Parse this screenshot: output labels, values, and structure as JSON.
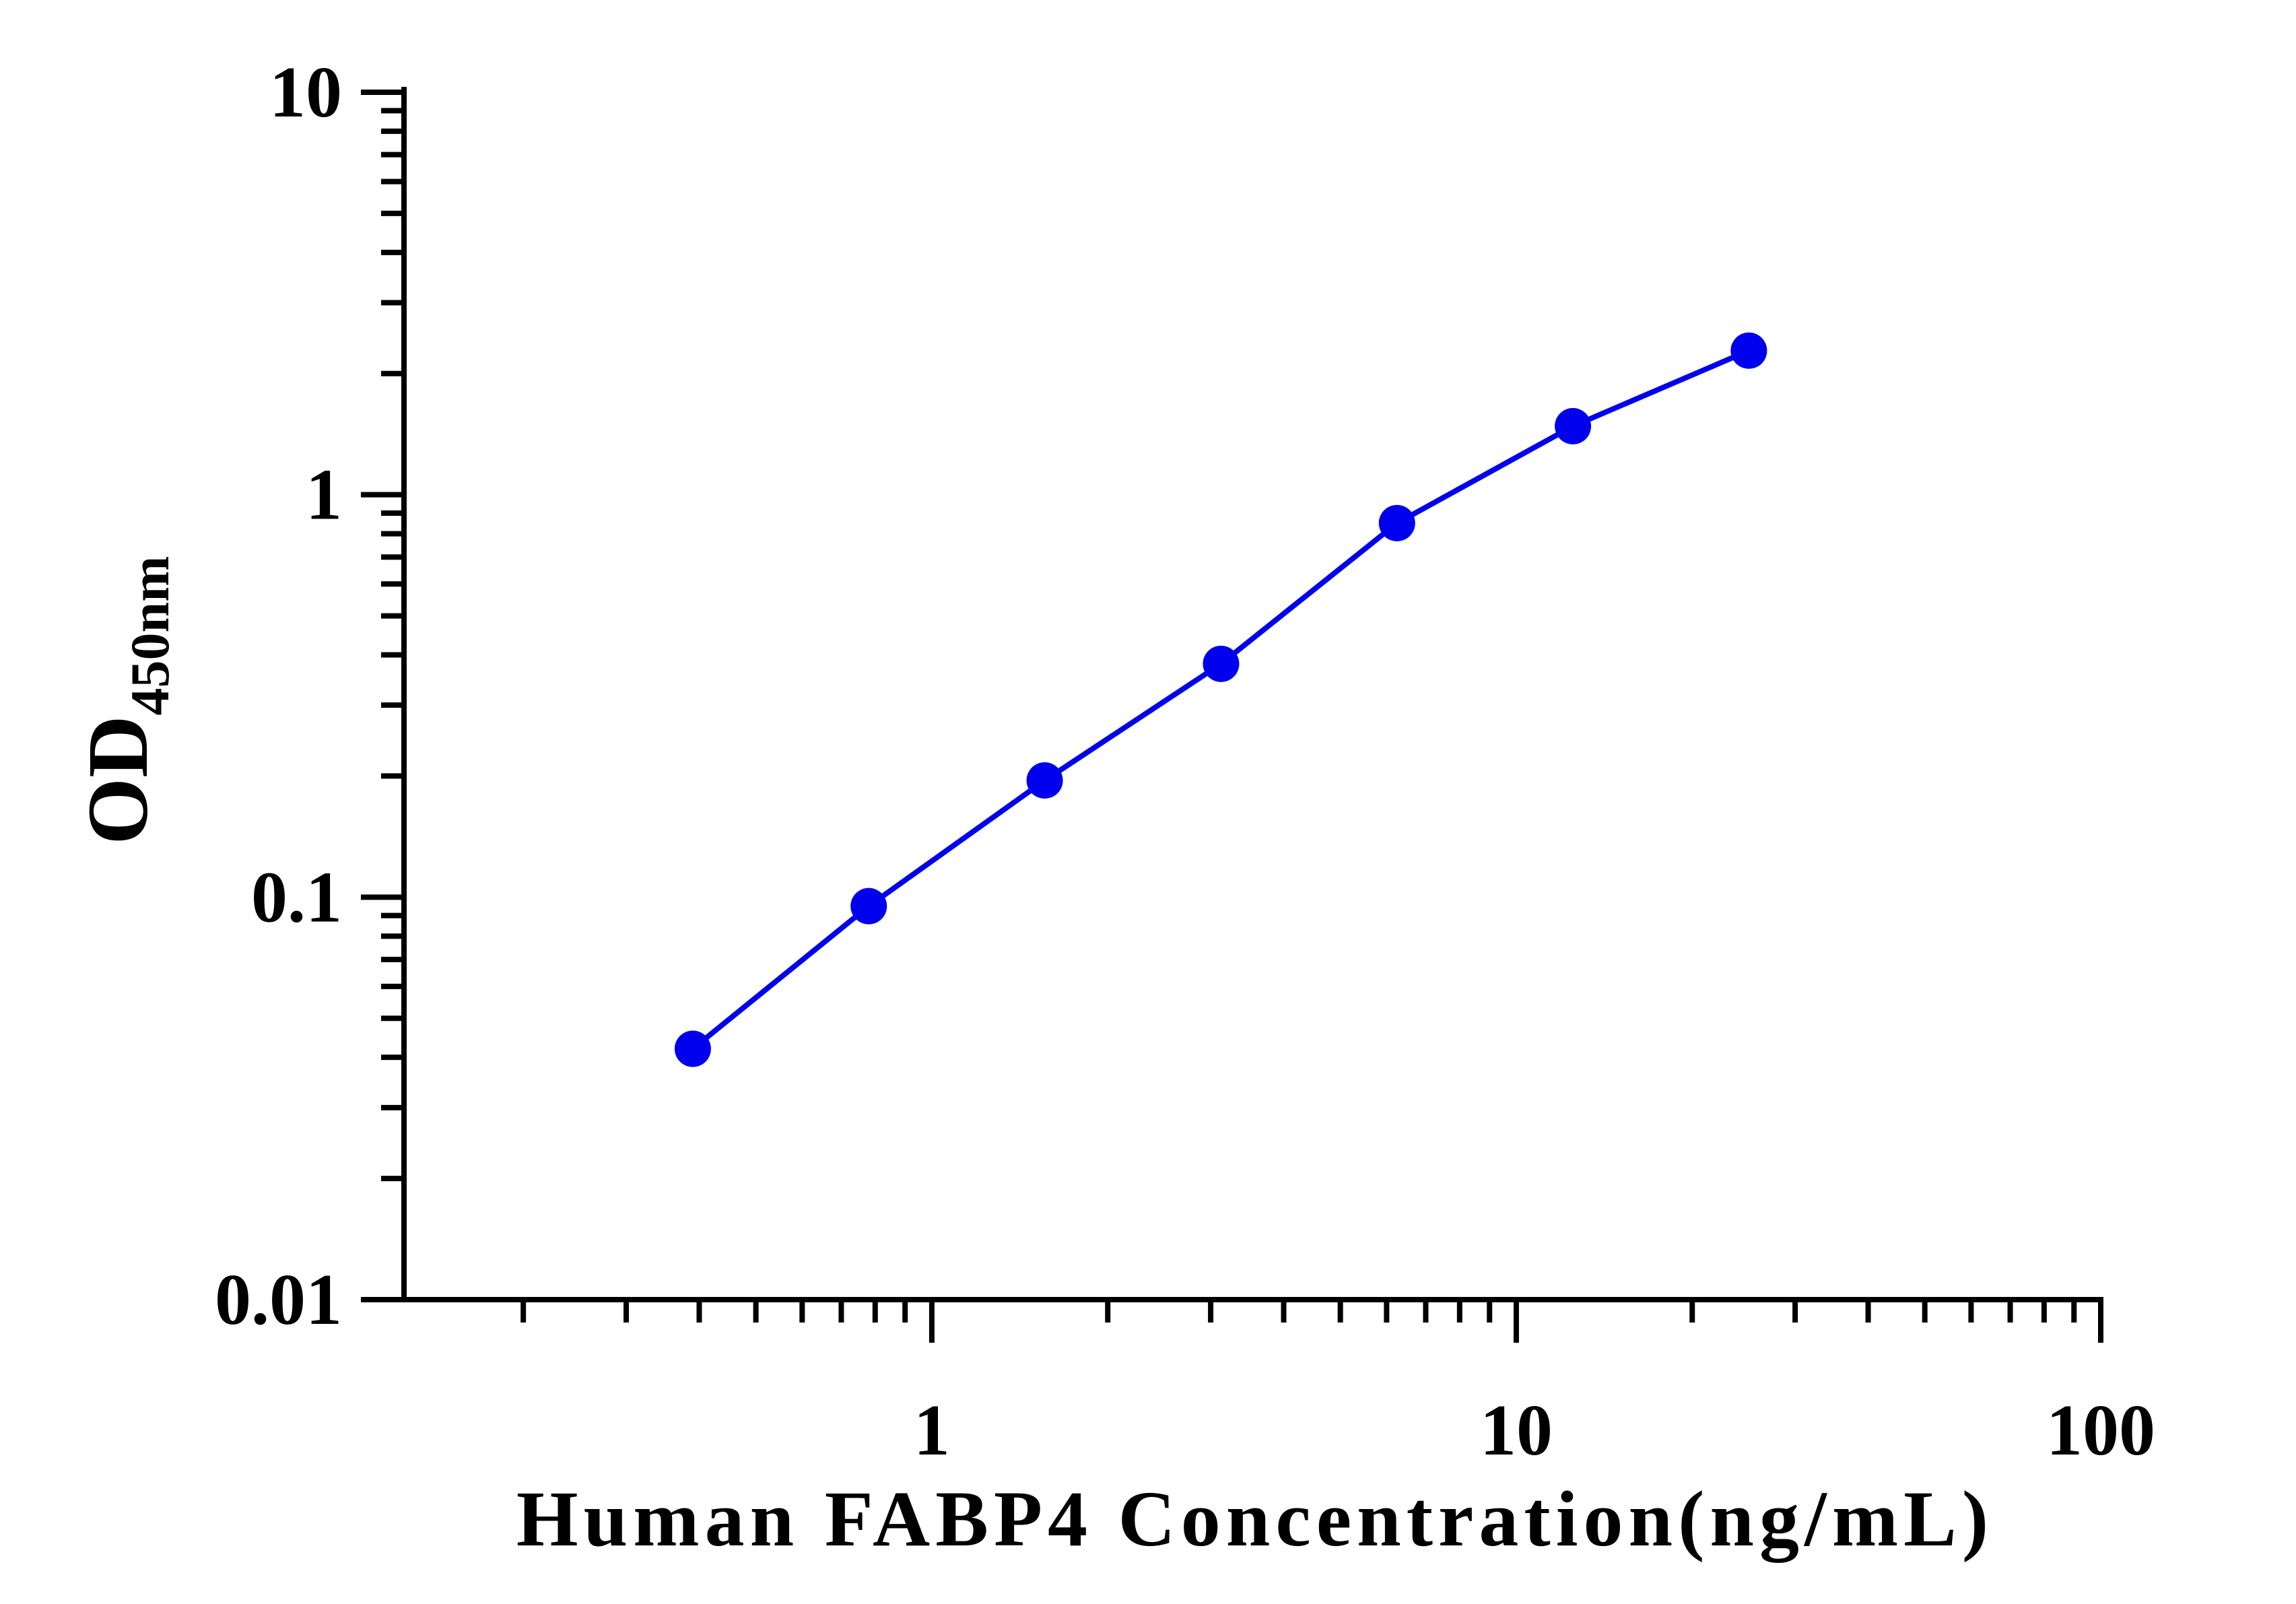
{
  "chart_data": {
    "type": "line",
    "xlabel": "Human FABP4 Concentration(ng/mL)",
    "ylabel_main": "OD",
    "ylabel_sub": "450nm",
    "x_scale": "log",
    "y_scale": "log",
    "xlim": [
      0.125,
      100
    ],
    "ylim": [
      0.01,
      10
    ],
    "x_tick_labels": [
      "1",
      "10",
      "100"
    ],
    "y_tick_labels": [
      "0.01",
      "0.1",
      "1",
      "10"
    ],
    "grid": false,
    "series": [
      {
        "color": "#0000ee",
        "x": [
          0.39,
          0.78,
          1.56,
          3.125,
          6.25,
          12.5,
          25
        ],
        "y": [
          0.042,
          0.095,
          0.195,
          0.38,
          0.85,
          1.48,
          2.28
        ]
      }
    ]
  }
}
